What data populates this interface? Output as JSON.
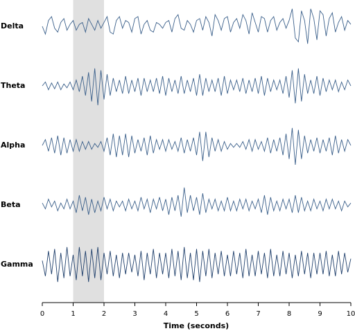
{
  "chart_data": {
    "type": "line",
    "xlabel": "Time (seconds)",
    "xlim": [
      0,
      10
    ],
    "xticks": [
      0,
      1,
      2,
      3,
      4,
      5,
      6,
      7,
      8,
      9,
      10
    ],
    "ylim": [
      -1,
      1
    ],
    "highlight": [
      1,
      2
    ],
    "highlight_color": "#e0e0e0",
    "x": [
      0,
      0.1,
      0.2,
      0.3,
      0.4,
      0.5,
      0.6,
      0.7,
      0.8,
      0.9,
      1,
      1.1,
      1.2,
      1.3,
      1.4,
      1.5,
      1.6,
      1.7,
      1.8,
      1.9,
      2,
      2.1,
      2.2,
      2.3,
      2.4,
      2.5,
      2.6,
      2.7,
      2.8,
      2.9,
      3,
      3.1,
      3.2,
      3.3,
      3.4,
      3.5,
      3.6,
      3.7,
      3.8,
      3.9,
      4,
      4.1,
      4.2,
      4.3,
      4.4,
      4.5,
      4.6,
      4.7,
      4.8,
      4.9,
      5,
      5.1,
      5.2,
      5.3,
      5.4,
      5.5,
      5.6,
      5.7,
      5.8,
      5.9,
      6,
      6.1,
      6.2,
      6.3,
      6.4,
      6.5,
      6.6,
      6.7,
      6.8,
      6.9,
      7,
      7.1,
      7.2,
      7.3,
      7.4,
      7.5,
      7.6,
      7.7,
      7.8,
      7.9,
      8,
      8.1,
      8.2,
      8.3,
      8.4,
      8.5,
      8.6,
      8.7,
      8.8,
      8.9,
      9,
      9.1,
      9.2,
      9.3,
      9.4,
      9.5,
      9.6,
      9.7,
      9.8,
      9.9,
      10
    ],
    "series": [
      {
        "name": "Delta",
        "color": "#3a5f8a",
        "values": [
          0,
          -0.4,
          0.3,
          0.5,
          -0.1,
          -0.3,
          0.2,
          0.4,
          -0.2,
          0.1,
          0.3,
          -0.2,
          0.1,
          0.2,
          -0.3,
          0.4,
          0.1,
          -0.2,
          0.3,
          -0.1,
          0.2,
          0.5,
          -0.3,
          -0.4,
          0.3,
          0.5,
          -0.1,
          0.3,
          0.2,
          -0.3,
          0.4,
          0.5,
          -0.4,
          0.1,
          0.3,
          -0.2,
          -0.3,
          0.2,
          0.1,
          -0.1,
          0.2,
          0.3,
          -0.3,
          0.4,
          0.6,
          -0.1,
          -0.2,
          0.3,
          0.1,
          -0.3,
          0.3,
          0.4,
          -0.2,
          0.5,
          0.2,
          -0.5,
          0.6,
          0.3,
          -0.2,
          0.4,
          0.5,
          -0.3,
          0.2,
          0.4,
          -0.1,
          0.6,
          0.3,
          -0.4,
          0.7,
          0.2,
          -0.3,
          0.5,
          0.4,
          -0.3,
          0.3,
          0.5,
          -0.2,
          0.2,
          0.4,
          -0.1,
          0.3,
          0.9,
          -0.6,
          -0.8,
          0.8,
          0.3,
          -0.9,
          0.9,
          0.4,
          -0.7,
          0.8,
          0.6,
          -0.5,
          0.4,
          0.7,
          -0.3,
          0.2,
          0.5,
          -0.2,
          0.3,
          0.1
        ]
      },
      {
        "name": "Theta",
        "color": "#3a5f8a",
        "values": [
          0,
          0.2,
          -0.2,
          0.15,
          -0.15,
          0.2,
          -0.2,
          0.1,
          -0.1,
          0.2,
          -0.2,
          0.3,
          -0.3,
          0.5,
          -0.5,
          0.7,
          -0.8,
          0.9,
          -1,
          0.8,
          -0.7,
          0.6,
          -0.5,
          0.4,
          -0.3,
          0.3,
          -0.4,
          0.5,
          -0.4,
          0.3,
          -0.3,
          0.4,
          -0.5,
          0.4,
          -0.3,
          0.3,
          -0.3,
          0.4,
          -0.4,
          0.5,
          -0.5,
          0.4,
          -0.3,
          0.3,
          -0.4,
          0.5,
          -0.4,
          0.3,
          -0.3,
          0.4,
          -0.5,
          0.6,
          -0.5,
          0.4,
          -0.3,
          0.3,
          -0.3,
          0.4,
          -0.5,
          0.5,
          -0.4,
          0.3,
          -0.2,
          0.3,
          -0.3,
          0.4,
          -0.4,
          0.3,
          -0.3,
          0.4,
          -0.4,
          0.5,
          -0.5,
          0.4,
          -0.3,
          0.3,
          -0.2,
          0.3,
          -0.4,
          0.5,
          -0.6,
          0.8,
          -0.9,
          0.9,
          -0.8,
          0.6,
          -0.4,
          0.3,
          -0.4,
          0.5,
          -0.5,
          0.4,
          -0.3,
          0.3,
          -0.2,
          0.3,
          -0.3,
          0.2,
          -0.2,
          0.3,
          0
        ]
      },
      {
        "name": "Alpha",
        "color": "#3a5f8a",
        "values": [
          0,
          0.3,
          -0.3,
          0.4,
          -0.4,
          0.5,
          -0.5,
          0.4,
          -0.4,
          0.3,
          -0.3,
          0.3,
          -0.3,
          0.2,
          -0.2,
          0.2,
          -0.2,
          0.1,
          -0.1,
          0.2,
          -0.3,
          0.4,
          -0.5,
          0.6,
          -0.6,
          0.5,
          -0.5,
          0.6,
          -0.6,
          0.5,
          -0.4,
          0.3,
          -0.3,
          0.4,
          -0.5,
          0.5,
          -0.4,
          0.3,
          -0.2,
          0.3,
          -0.3,
          0.3,
          -0.2,
          0.2,
          -0.3,
          0.4,
          -0.4,
          0.3,
          -0.3,
          0.4,
          -0.5,
          0.7,
          -0.8,
          0.7,
          -0.6,
          0.4,
          -0.3,
          0.3,
          -0.3,
          0.2,
          -0.2,
          0.1,
          -0.1,
          0.1,
          -0.1,
          0.2,
          -0.2,
          0.3,
          -0.3,
          0.3,
          -0.2,
          0.2,
          -0.3,
          0.4,
          -0.4,
          0.3,
          -0.3,
          0.4,
          -0.5,
          0.6,
          -0.7,
          0.9,
          -1,
          0.8,
          -0.7,
          0.5,
          -0.4,
          0.3,
          -0.3,
          0.4,
          -0.4,
          0.3,
          -0.3,
          0.4,
          -0.5,
          0.5,
          -0.4,
          0.3,
          -0.3,
          0.3,
          0
        ]
      },
      {
        "name": "Beta",
        "color": "#3a5f8a",
        "values": [
          0.1,
          -0.2,
          0.3,
          -0.1,
          0.2,
          -0.3,
          0.1,
          -0.2,
          0.3,
          -0.2,
          0.2,
          -0.4,
          0.5,
          -0.3,
          0.4,
          -0.5,
          0.3,
          -0.4,
          0.2,
          -0.3,
          0.4,
          -0.2,
          0.3,
          -0.3,
          0.2,
          -0.1,
          0.2,
          -0.3,
          0.3,
          -0.2,
          0.2,
          -0.3,
          0.4,
          -0.2,
          0.3,
          -0.4,
          0.3,
          -0.2,
          0.4,
          -0.3,
          0.3,
          -0.5,
          0.4,
          -0.3,
          0.5,
          -0.6,
          0.9,
          -0.4,
          0.5,
          -0.3,
          0.4,
          -0.5,
          0.6,
          -0.4,
          0.3,
          -0.2,
          0.3,
          -0.3,
          0.2,
          -0.3,
          0.4,
          -0.3,
          0.2,
          -0.3,
          0.3,
          -0.2,
          0.3,
          -0.3,
          0.2,
          -0.2,
          0.3,
          -0.4,
          0.5,
          -0.5,
          0.4,
          -0.3,
          0.2,
          -0.3,
          0.3,
          -0.2,
          0.3,
          -0.4,
          0.5,
          -0.4,
          0.4,
          -0.3,
          0.2,
          -0.3,
          0.3,
          -0.2,
          0.2,
          -0.3,
          0.3,
          -0.2,
          0.3,
          -0.2,
          0.2,
          -0.3,
          0.2,
          -0.1,
          0.1
        ]
      },
      {
        "name": "Gamma",
        "color": "#1f3f6b",
        "values": [
          0.2,
          -0.6,
          0.7,
          -0.5,
          0.8,
          -0.9,
          0.6,
          -0.7,
          0.9,
          -0.6,
          0.5,
          -0.8,
          0.9,
          -0.6,
          0.7,
          -0.9,
          0.8,
          -0.7,
          0.9,
          -0.8,
          0.6,
          -0.5,
          0.7,
          -0.6,
          0.5,
          -0.7,
          0.6,
          -0.5,
          0.6,
          -0.4,
          0.5,
          -0.6,
          0.7,
          -0.8,
          0.6,
          -0.5,
          0.8,
          -0.7,
          0.6,
          -0.5,
          0.6,
          -0.7,
          0.8,
          -0.6,
          0.7,
          -0.8,
          0.9,
          -0.7,
          0.6,
          -0.8,
          0.8,
          -0.9,
          0.7,
          -0.6,
          0.8,
          -0.7,
          0.6,
          -0.5,
          0.7,
          -0.6,
          0.5,
          -0.6,
          0.7,
          -0.5,
          0.6,
          -0.7,
          0.8,
          -0.6,
          0.5,
          -0.6,
          0.7,
          -0.5,
          0.6,
          -0.7,
          0.8,
          -0.6,
          0.5,
          -0.6,
          0.7,
          -0.5,
          0.6,
          -0.7,
          0.5,
          -0.6,
          0.7,
          -0.5,
          0.6,
          -0.7,
          0.6,
          -0.5,
          0.6,
          -0.5,
          0.7,
          -0.6,
          0.5,
          -0.6,
          0.7,
          -0.5,
          0.6,
          -0.4,
          0.3
        ]
      }
    ]
  }
}
